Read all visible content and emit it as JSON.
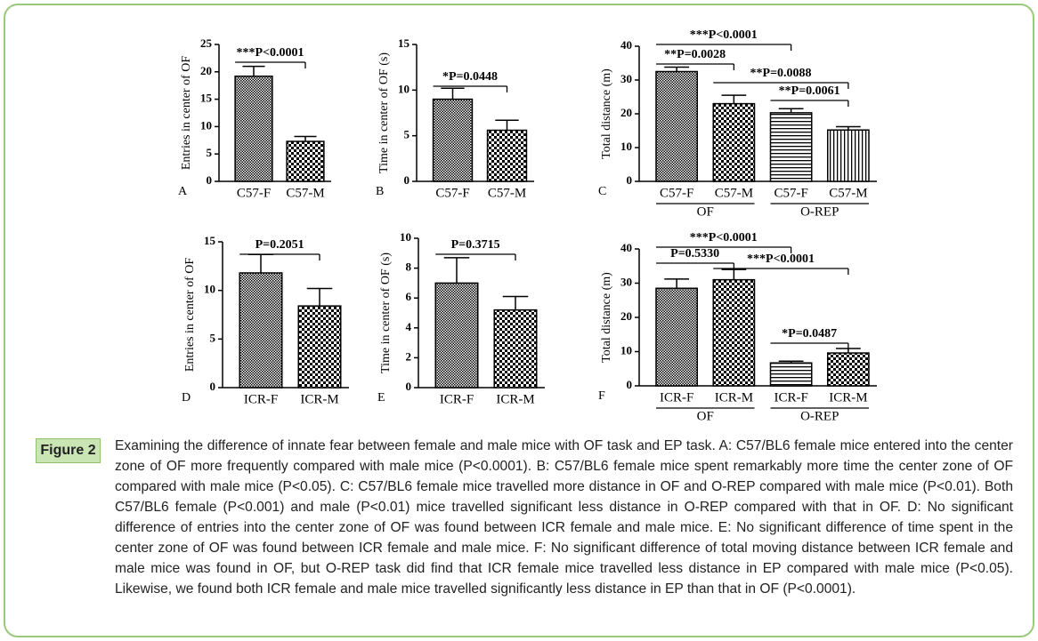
{
  "chart_data": [
    {
      "type": "bar",
      "panel": "A",
      "y_label": "Entries in center of OF",
      "categories": [
        "C57-F",
        "C57-M"
      ],
      "values": [
        19.2,
        7.3
      ],
      "errors": [
        1.8,
        0.9
      ],
      "ylim": [
        0,
        25
      ],
      "yticks": [
        0,
        5,
        10,
        15,
        20,
        25
      ],
      "comparisons": [
        {
          "label": "***P<0.0001",
          "pair": [
            0,
            1
          ]
        }
      ]
    },
    {
      "type": "bar",
      "panel": "B",
      "y_label": "Time in center of OF (s)",
      "categories": [
        "C57-F",
        "C57-M"
      ],
      "values": [
        9.0,
        5.6
      ],
      "errors": [
        1.2,
        1.1
      ],
      "ylim": [
        0,
        15
      ],
      "yticks": [
        0,
        5,
        10,
        15
      ],
      "comparisons": [
        {
          "label": "*P=0.0448",
          "pair": [
            0,
            1
          ]
        }
      ]
    },
    {
      "type": "bar",
      "panel": "C",
      "y_label": "Total distance (m)",
      "categories": [
        "C57-F",
        "C57-M",
        "C57-F",
        "C57-M"
      ],
      "values": [
        32.5,
        23.0,
        20.3,
        15.2
      ],
      "errors": [
        1.3,
        2.5,
        1.2,
        1.0
      ],
      "ylim": [
        0,
        40
      ],
      "yticks": [
        0,
        10,
        20,
        30,
        40
      ],
      "groups": [
        {
          "label": "OF",
          "span": [
            0,
            1
          ]
        },
        {
          "label": "O-REP",
          "span": [
            2,
            3
          ]
        }
      ],
      "comparisons": [
        {
          "label": "***P<0.0001",
          "pair": [
            0,
            2
          ]
        },
        {
          "label": "**P=0.0028",
          "pair": [
            0,
            1
          ]
        },
        {
          "label": "**P=0.0088",
          "pair": [
            1,
            3
          ]
        },
        {
          "label": "**P=0.0061",
          "pair": [
            2,
            3
          ]
        }
      ]
    },
    {
      "type": "bar",
      "panel": "D",
      "y_label": "Entries in center of OF",
      "categories": [
        "ICR-F",
        "ICR-M"
      ],
      "values": [
        11.8,
        8.4
      ],
      "errors": [
        1.9,
        1.8
      ],
      "ylim": [
        0,
        15
      ],
      "yticks": [
        0,
        5,
        10,
        15
      ],
      "comparisons": [
        {
          "label": "P=0.2051",
          "pair": [
            0,
            1
          ]
        }
      ]
    },
    {
      "type": "bar",
      "panel": "E",
      "y_label": "Time in center of OF (s)",
      "categories": [
        "ICR-F",
        "ICR-M"
      ],
      "values": [
        7.0,
        5.2
      ],
      "errors": [
        1.7,
        0.9
      ],
      "ylim": [
        0,
        10
      ],
      "yticks": [
        0,
        2,
        4,
        6,
        8,
        10
      ],
      "comparisons": [
        {
          "label": "P=0.3715",
          "pair": [
            0,
            1
          ]
        }
      ]
    },
    {
      "type": "bar",
      "panel": "F",
      "y_label": "Total distance (m)",
      "categories": [
        "ICR-F",
        "ICR-M",
        "ICR-F",
        "ICR-M"
      ],
      "values": [
        28.5,
        31.0,
        6.7,
        9.6
      ],
      "errors": [
        2.7,
        3.0,
        0.5,
        1.3
      ],
      "ylim": [
        0,
        40
      ],
      "yticks": [
        0,
        10,
        20,
        30,
        40
      ],
      "groups": [
        {
          "label": "OF",
          "span": [
            0,
            1
          ]
        },
        {
          "label": "O-REP",
          "span": [
            2,
            3
          ]
        }
      ],
      "comparisons": [
        {
          "label": "***P<0.0001",
          "pair": [
            0,
            2
          ]
        },
        {
          "label": "P=0.5330",
          "pair": [
            0,
            1
          ]
        },
        {
          "label": "***P<0.0001",
          "pair": [
            1,
            3
          ]
        },
        {
          "label": "*P=0.0487",
          "pair": [
            2,
            3
          ]
        }
      ]
    }
  ],
  "caption": {
    "label": "Figure 2",
    "text": "Examining the difference of innate fear between female and male mice with OF task and EP task. A: C57/BL6 female mice entered into the center zone of OF more frequently compared with male mice (P<0.0001). B: C57/BL6 female mice spent remarkably more time the center zone of OF compared with male mice (P<0.05). C: C57/BL6 female mice travelled more distance in OF and O-REP compared with male mice (P<0.01). Both C57/BL6 female (P<0.001) and male (P<0.01) mice travelled significant less distance in O-REP compared with that in OF. D: No significant difference of entries into the center zone of OF was found between ICR female and male mice. E: No significant difference of time spent in the center zone of OF was found between ICR female and male mice. F: No significant difference of total moving distance between ICR female and male mice was found in OF, but O-REP task did find that ICR female mice travelled less distance in EP compared with male mice (P<0.05). Likewise, we found both ICR female and male mice travelled significantly less distance in EP than that in OF (P<0.0001)."
  }
}
